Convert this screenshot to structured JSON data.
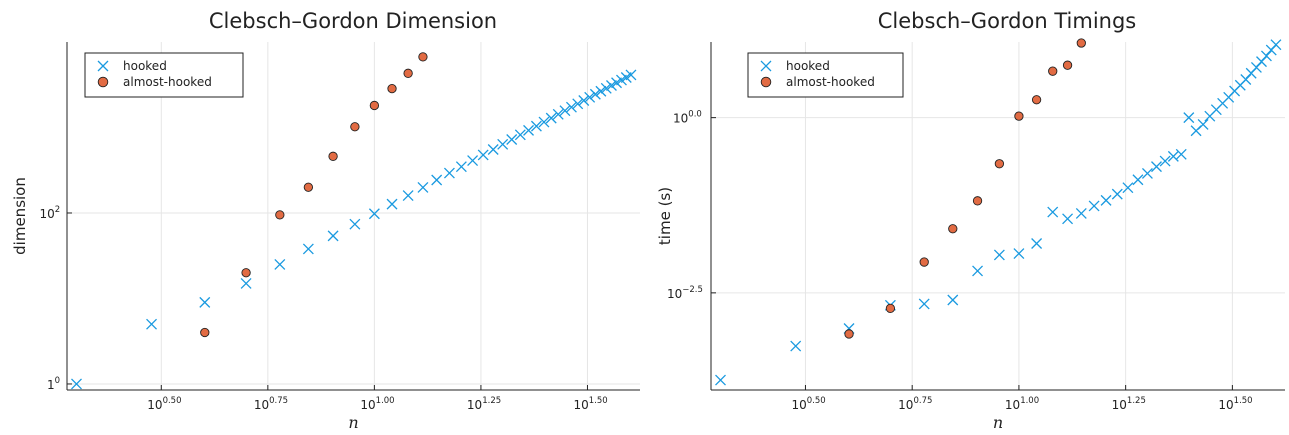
{
  "chart_data": [
    {
      "type": "scatter",
      "title": "Clebsch–Gordon Dimension",
      "xlabel": "n",
      "ylabel": "dimension",
      "xscale": "log10",
      "yscale": "log10",
      "xlim": [
        1.9,
        42
      ],
      "ylim": [
        0.85,
        10000
      ],
      "xticks": [
        {
          "value": 3.1623,
          "base": "10",
          "exp": "0.50"
        },
        {
          "value": 5.6234,
          "base": "10",
          "exp": "0.75"
        },
        {
          "value": 10,
          "base": "10",
          "exp": "1.00"
        },
        {
          "value": 17.7828,
          "base": "10",
          "exp": "1.25"
        },
        {
          "value": 31.6228,
          "base": "10",
          "exp": "1.50"
        }
      ],
      "yticks": [
        {
          "value": 1,
          "label": "1",
          "exp": "0"
        },
        {
          "value": 100,
          "label": "10",
          "exp": "2"
        }
      ],
      "grid": true,
      "legend_position": "top-left",
      "series": [
        {
          "name": "hooked",
          "marker": "x",
          "color": "#1a9ae0",
          "points": [
            [
              2,
              1
            ],
            [
              3,
              5
            ],
            [
              4,
              9
            ],
            [
              5,
              15
            ],
            [
              6,
              25
            ],
            [
              7,
              38
            ],
            [
              8,
              54
            ],
            [
              9,
              74
            ],
            [
              10,
              98
            ],
            [
              11,
              127
            ],
            [
              12,
              160
            ],
            [
              13,
              199
            ],
            [
              14,
              243
            ],
            [
              15,
              293
            ],
            [
              16,
              348
            ],
            [
              17,
              410
            ],
            [
              18,
              478
            ],
            [
              19,
              553
            ],
            [
              20,
              635
            ],
            [
              21,
              724
            ],
            [
              22,
              821
            ],
            [
              23,
              925
            ],
            [
              24,
              1037
            ],
            [
              25,
              1158
            ],
            [
              26,
              1287
            ],
            [
              27,
              1425
            ],
            [
              28,
              1572
            ],
            [
              29,
              1728
            ],
            [
              30,
              1894
            ],
            [
              31,
              2069
            ],
            [
              32,
              2254
            ],
            [
              33,
              2449
            ],
            [
              34,
              2655
            ],
            [
              35,
              2871
            ],
            [
              36,
              3098
            ],
            [
              37,
              3336
            ],
            [
              38,
              3585
            ],
            [
              39,
              3845
            ],
            [
              40,
              4117
            ]
          ]
        },
        {
          "name": "almost-hooked",
          "marker": "circle",
          "color": "#e26b43",
          "points": [
            [
              4,
              4
            ],
            [
              5,
              20
            ],
            [
              6,
              95
            ],
            [
              7,
              200
            ],
            [
              8,
              460
            ],
            [
              9,
              1020
            ],
            [
              10,
              1810
            ],
            [
              11,
              2850
            ],
            [
              12,
              4300
            ],
            [
              13,
              6700
            ]
          ]
        }
      ]
    },
    {
      "type": "scatter",
      "title": "Clebsch–Gordon Timings",
      "xlabel": "n",
      "ylabel": "time (s)",
      "xscale": "log10",
      "yscale": "log10",
      "xlim": [
        1.9,
        42
      ],
      "ylim": [
        0.00013,
        12
      ],
      "xticks": [
        {
          "value": 3.1623,
          "base": "10",
          "exp": "0.50"
        },
        {
          "value": 5.6234,
          "base": "10",
          "exp": "0.75"
        },
        {
          "value": 10,
          "base": "10",
          "exp": "1.00"
        },
        {
          "value": 17.7828,
          "base": "10",
          "exp": "1.25"
        },
        {
          "value": 31.6228,
          "base": "10",
          "exp": "1.50"
        }
      ],
      "yticks": [
        {
          "value": 0.003162,
          "base": "10",
          "exp": "−2.5"
        },
        {
          "value": 1,
          "base": "10",
          "exp": "0.0"
        }
      ],
      "grid": true,
      "legend_position": "top-left",
      "series": [
        {
          "name": "hooked",
          "marker": "x",
          "color": "#1a9ae0",
          "points": [
            [
              2,
              0.00018
            ],
            [
              3,
              0.00055
            ],
            [
              4,
              0.00098
            ],
            [
              5,
              0.0021
            ],
            [
              6,
              0.0022
            ],
            [
              7,
              0.0025
            ],
            [
              8,
              0.0065
            ],
            [
              9,
              0.011
            ],
            [
              10,
              0.0115
            ],
            [
              11,
              0.016
            ],
            [
              12,
              0.045
            ],
            [
              13,
              0.036
            ],
            [
              14,
              0.043
            ],
            [
              15,
              0.055
            ],
            [
              16,
              0.066
            ],
            [
              17,
              0.081
            ],
            [
              18,
              0.1
            ],
            [
              19,
              0.13
            ],
            [
              20,
              0.16
            ],
            [
              21,
              0.2
            ],
            [
              22,
              0.24
            ],
            [
              23,
              0.28
            ],
            [
              24,
              0.3
            ],
            [
              25,
              1.0
            ],
            [
              26,
              0.65
            ],
            [
              27,
              0.8
            ],
            [
              28,
              1.05
            ],
            [
              29,
              1.3
            ],
            [
              30,
              1.6
            ],
            [
              31,
              1.95
            ],
            [
              32,
              2.4
            ],
            [
              33,
              2.9
            ],
            [
              34,
              3.5
            ],
            [
              35,
              4.3
            ],
            [
              36,
              5.2
            ],
            [
              37,
              6.3
            ],
            [
              38,
              7.6
            ],
            [
              39,
              9.2
            ],
            [
              40,
              11.0
            ]
          ]
        },
        {
          "name": "almost-hooked",
          "marker": "circle",
          "color": "#e26b43",
          "points": [
            [
              4,
              0.00082
            ],
            [
              5,
              0.0019
            ],
            [
              6,
              0.0087
            ],
            [
              7,
              0.026
            ],
            [
              8,
              0.065
            ],
            [
              9,
              0.22
            ],
            [
              10,
              1.05
            ],
            [
              11,
              1.8
            ],
            [
              12,
              4.6
            ],
            [
              13,
              5.6
            ],
            [
              14,
              11.6
            ]
          ]
        }
      ]
    }
  ]
}
